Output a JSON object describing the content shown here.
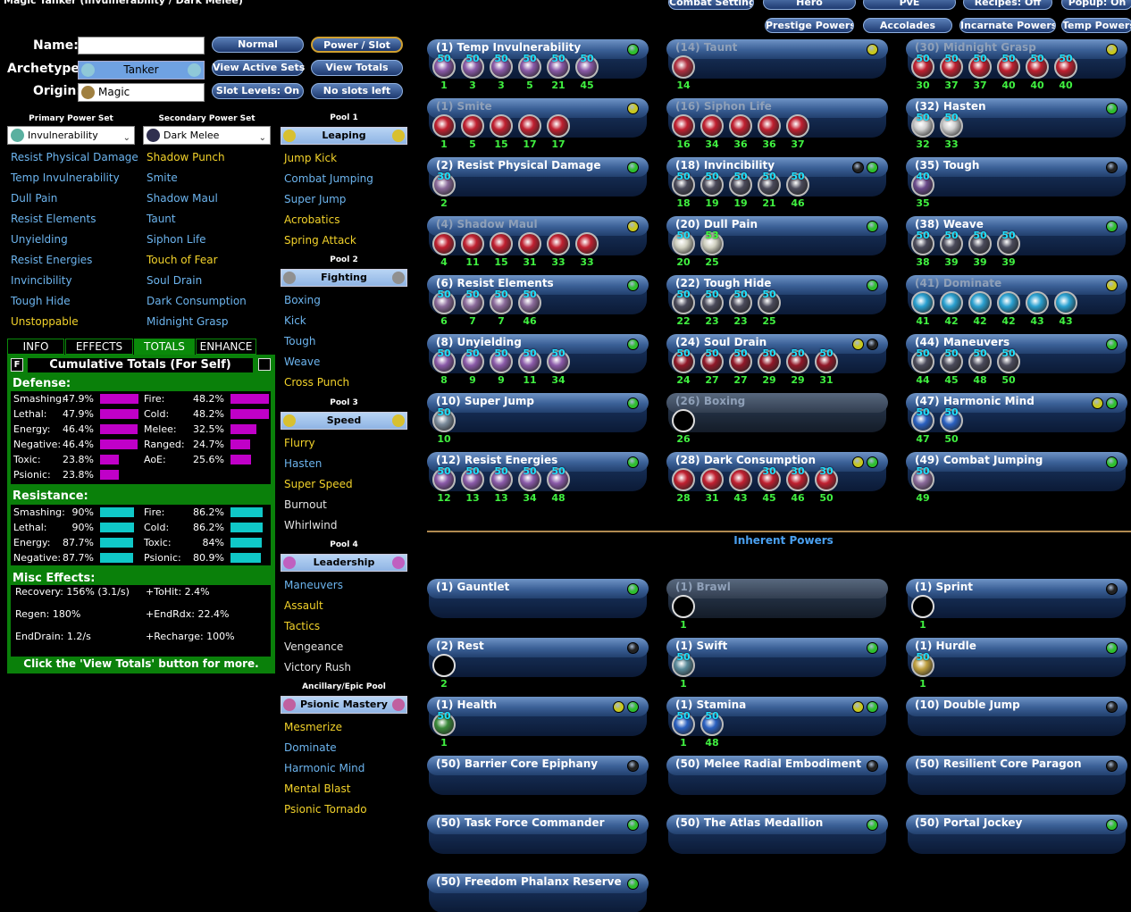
{
  "title": "Magic Tanker (Invulnerability / Dark Melee)",
  "top_buttons": [
    [
      "Combat Settings",
      "Hero",
      "PvE",
      "Recipes: Off",
      "Popup: On"
    ],
    [
      "Prestige Powers",
      "Accolades",
      "Incarnate Powers",
      "Temp Powers"
    ]
  ],
  "form": {
    "name_label": "Name:",
    "archetype_label": "Archetype:",
    "archetype": "Tanker",
    "origin_label": "Origin:",
    "origin": "Magic"
  },
  "buttons": [
    [
      "Normal",
      "Power / Slot"
    ],
    [
      "View Active Sets",
      "View Totals"
    ],
    [
      "Slot Levels: On",
      "No slots left"
    ]
  ],
  "state_colors": {
    "taken": "#6cb4ee",
    "available": "#f2d22a",
    "unavailable": "#e2e2e2"
  },
  "power_sets": [
    {
      "label": "Primary Power Set",
      "name": "Invulnerability",
      "powers": [
        [
          "Resist Physical Damage",
          "taken"
        ],
        [
          "Temp Invulnerability",
          "taken"
        ],
        [
          "Dull Pain",
          "taken"
        ],
        [
          "Resist Elements",
          "taken"
        ],
        [
          "Unyielding",
          "taken"
        ],
        [
          "Resist Energies",
          "taken"
        ],
        [
          "Invincibility",
          "taken"
        ],
        [
          "Tough Hide",
          "taken"
        ],
        [
          "Unstoppable",
          "available"
        ]
      ]
    },
    {
      "label": "Secondary Power Set",
      "name": "Dark Melee",
      "powers": [
        [
          "Shadow Punch",
          "available"
        ],
        [
          "Smite",
          "taken"
        ],
        [
          "Shadow Maul",
          "taken"
        ],
        [
          "Taunt",
          "taken"
        ],
        [
          "Siphon Life",
          "taken"
        ],
        [
          "Touch of Fear",
          "available"
        ],
        [
          "Soul Drain",
          "taken"
        ],
        [
          "Dark Consumption",
          "taken"
        ],
        [
          "Midnight Grasp",
          "taken"
        ]
      ]
    }
  ],
  "pools": [
    {
      "label": "Pool 1",
      "name": "Leaping",
      "powers": [
        [
          "Jump Kick",
          "available"
        ],
        [
          "Combat Jumping",
          "taken"
        ],
        [
          "Super Jump",
          "taken"
        ],
        [
          "Acrobatics",
          "available"
        ],
        [
          "Spring Attack",
          "available"
        ]
      ]
    },
    {
      "label": "Pool 2",
      "name": "Fighting",
      "powers": [
        [
          "Boxing",
          "taken"
        ],
        [
          "Kick",
          "taken"
        ],
        [
          "Tough",
          "taken"
        ],
        [
          "Weave",
          "taken"
        ],
        [
          "Cross Punch",
          "available"
        ]
      ]
    },
    {
      "label": "Pool 3",
      "name": "Speed",
      "powers": [
        [
          "Flurry",
          "available"
        ],
        [
          "Hasten",
          "taken"
        ],
        [
          "Super Speed",
          "available"
        ],
        [
          "Burnout",
          "unavailable"
        ],
        [
          "Whirlwind",
          "unavailable"
        ]
      ]
    },
    {
      "label": "Pool 4",
      "name": "Leadership",
      "powers": [
        [
          "Maneuvers",
          "taken"
        ],
        [
          "Assault",
          "available"
        ],
        [
          "Tactics",
          "available"
        ],
        [
          "Vengeance",
          "unavailable"
        ],
        [
          "Victory Rush",
          "unavailable"
        ]
      ]
    },
    {
      "label": "Ancillary/Epic Pool",
      "name": "Psionic Mastery",
      "powers": [
        [
          "Mesmerize",
          "available"
        ],
        [
          "Dominate",
          "taken"
        ],
        [
          "Harmonic Mind",
          "taken"
        ],
        [
          "Mental Blast",
          "available"
        ],
        [
          "Psionic Tornado",
          "available"
        ]
      ]
    }
  ],
  "tabs": [
    "INFO",
    "EFFECTS",
    "TOTALS",
    "ENHANCE"
  ],
  "active_tab": 2,
  "totals": {
    "flag": "F",
    "title": "Cumulative Totals (For Self)",
    "defense_label": "Defense:",
    "defense": [
      [
        {
          "name": "Smashing:",
          "value": 47.9,
          "label": "47.9%"
        },
        {
          "name": "Lethal:",
          "value": 47.9,
          "label": "47.9%"
        },
        {
          "name": "Energy:",
          "value": 46.4,
          "label": "46.4%"
        },
        {
          "name": "Negative:",
          "value": 46.4,
          "label": "46.4%"
        },
        {
          "name": "Toxic:",
          "value": 23.8,
          "label": "23.8%"
        },
        {
          "name": "Psionic:",
          "value": 23.8,
          "label": "23.8%"
        }
      ],
      [
        {
          "name": "Fire:",
          "value": 48.2,
          "label": "48.2%"
        },
        {
          "name": "Cold:",
          "value": 48.2,
          "label": "48.2%"
        },
        {
          "name": "Melee:",
          "value": 32.5,
          "label": "32.5%"
        },
        {
          "name": "Ranged:",
          "value": 24.7,
          "label": "24.7%"
        },
        {
          "name": "AoE:",
          "value": 25.6,
          "label": "25.6%"
        }
      ]
    ],
    "resistance_label": "Resistance:",
    "resistance": [
      [
        {
          "name": "Smashing:",
          "value": 90,
          "label": "90%"
        },
        {
          "name": "Lethal:",
          "value": 90,
          "label": "90%"
        },
        {
          "name": "Energy:",
          "value": 87.7,
          "label": "87.7%"
        },
        {
          "name": "Negative:",
          "value": 87.7,
          "label": "87.7%"
        }
      ],
      [
        {
          "name": "Fire:",
          "value": 86.2,
          "label": "86.2%"
        },
        {
          "name": "Cold:",
          "value": 86.2,
          "label": "86.2%"
        },
        {
          "name": "Toxic:",
          "value": 84,
          "label": "84%"
        },
        {
          "name": "Psionic:",
          "value": 80.9,
          "label": "80.9%"
        }
      ]
    ],
    "misc_label": "Misc Effects:",
    "misc": [
      [
        "Recovery: 156% (3.1/s)",
        "+ToHit: 2.4%"
      ],
      [
        "Regen: 180%",
        "+EndRdx: 22.4%"
      ],
      [
        "EndDrain: 1.2/s",
        "+Recharge: 100%"
      ]
    ],
    "footer": "Click the 'View Totals' button for more."
  },
  "power_grid": [
    [
      {
        "title": "(1) Temp Invulnerability",
        "icon": "#8a5aa8",
        "lights": [
          "#2fbf2f"
        ],
        "slots": [
          [
            50,
            1
          ],
          [
            50,
            3
          ],
          [
            50,
            3
          ],
          [
            50,
            5
          ],
          [
            50,
            21
          ],
          [
            50,
            45
          ]
        ]
      },
      {
        "title": "(1) Smite",
        "dim": true,
        "icon": "#c02030",
        "lights": [
          "#c8c820"
        ],
        "slots": [
          [
            null,
            1
          ],
          [
            null,
            5
          ],
          [
            null,
            15
          ],
          [
            null,
            17
          ],
          [
            null,
            17
          ]
        ]
      },
      {
        "title": "(2) Resist Physical Damage",
        "icon": "#8a6a9a",
        "lights": [
          "#2fbf2f"
        ],
        "slots": [
          [
            30,
            2
          ]
        ]
      },
      {
        "title": "(4) Shadow Maul",
        "dim": true,
        "icon": "#c02030",
        "lights": [
          "#c8c820"
        ],
        "slots": [
          [
            null,
            4
          ],
          [
            null,
            11
          ],
          [
            null,
            15
          ],
          [
            null,
            31
          ],
          [
            null,
            33
          ],
          [
            null,
            33
          ]
        ]
      },
      {
        "title": "(6) Resist Elements",
        "icon": "#8a6a9a",
        "lights": [
          "#2fbf2f"
        ],
        "slots": [
          [
            50,
            6
          ],
          [
            50,
            7
          ],
          [
            50,
            7
          ],
          [
            50,
            46
          ]
        ]
      },
      {
        "title": "(8) Unyielding",
        "icon": "#8a5aa8",
        "lights": [
          "#2fbf2f"
        ],
        "slots": [
          [
            50,
            8
          ],
          [
            50,
            9
          ],
          [
            50,
            9
          ],
          [
            50,
            11
          ],
          [
            50,
            34
          ]
        ]
      },
      {
        "title": "(10) Super Jump",
        "icon": "#7a8a9a",
        "lights": [
          "#2fbf2f"
        ],
        "slots": [
          [
            50,
            10
          ]
        ]
      },
      {
        "title": "(12) Resist Energies",
        "icon": "#8a5aa8",
        "lights": [
          "#2fbf2f"
        ],
        "slots": [
          [
            50,
            12
          ],
          [
            50,
            13
          ],
          [
            50,
            13
          ],
          [
            50,
            34
          ],
          [
            50,
            48
          ]
        ]
      }
    ],
    [
      {
        "title": "(14) Taunt",
        "dim": true,
        "icon": "#b03040",
        "lights": [
          "#c8c820"
        ],
        "slots": [
          [
            null,
            14
          ]
        ]
      },
      {
        "title": "(16) Siphon Life",
        "dim": true,
        "icon": "#c02030",
        "lights": [],
        "slots": [
          [
            null,
            16
          ],
          [
            null,
            34
          ],
          [
            null,
            36
          ],
          [
            null,
            36
          ],
          [
            null,
            37
          ]
        ]
      },
      {
        "title": "(18) Invincibility",
        "icon": "#4a4a5a",
        "lights": [
          "#222222",
          "#2fbf2f"
        ],
        "slots": [
          [
            50,
            18
          ],
          [
            50,
            19
          ],
          [
            50,
            19
          ],
          [
            50,
            21
          ],
          [
            50,
            46
          ]
        ]
      },
      {
        "title": "(20) Dull Pain",
        "icon": "#d0d0c0",
        "lights": [
          "#2fbf2f"
        ],
        "slots": [
          [
            50,
            20
          ],
          [
            53,
            25
          ]
        ]
      },
      {
        "title": "(22) Tough Hide",
        "icon": "#4a4a5a",
        "lights": [
          "#2fbf2f"
        ],
        "slots": [
          [
            50,
            22
          ],
          [
            50,
            23
          ],
          [
            50,
            23
          ],
          [
            50,
            25
          ]
        ]
      },
      {
        "title": "(24) Soul Drain",
        "icon": "#901828",
        "lights": [
          "#c8c820",
          "#222222"
        ],
        "slots": [
          [
            50,
            24
          ],
          [
            50,
            27
          ],
          [
            50,
            27
          ],
          [
            50,
            29
          ],
          [
            50,
            29
          ],
          [
            50,
            31
          ]
        ]
      },
      {
        "title": "(26) Boxing",
        "dim": true,
        "icon": null,
        "lights": [],
        "slots": [
          [
            null,
            26
          ]
        ]
      },
      {
        "title": "(28) Dark Consumption",
        "icon": "#c02030",
        "lights": [
          "#c8c820",
          "#2fbf2f"
        ],
        "slots": [
          [
            null,
            28
          ],
          [
            null,
            31
          ],
          [
            null,
            43
          ],
          [
            30,
            45
          ],
          [
            30,
            46
          ],
          [
            30,
            50
          ]
        ]
      }
    ],
    [
      {
        "title": "(30) Midnight Grasp",
        "dim": true,
        "icon": "#c02030",
        "lights": [
          "#c8c820"
        ],
        "slots": [
          [
            50,
            30
          ],
          [
            50,
            37
          ],
          [
            50,
            37
          ],
          [
            50,
            40
          ],
          [
            50,
            40
          ],
          [
            50,
            40
          ]
        ]
      },
      {
        "title": "(32) Hasten",
        "icon": "#d0d0d0",
        "lights": [
          "#2fbf2f"
        ],
        "slots": [
          [
            50,
            32
          ],
          [
            50,
            33
          ]
        ]
      },
      {
        "title": "(35) Tough",
        "icon": "#6a4a8a",
        "lights": [
          "#222222"
        ],
        "slots": [
          [
            40,
            35
          ]
        ]
      },
      {
        "title": "(38) Weave",
        "icon": "#4a4a5a",
        "lights": [
          "#2fbf2f"
        ],
        "slots": [
          [
            50,
            38
          ],
          [
            50,
            39
          ],
          [
            50,
            39
          ],
          [
            50,
            39
          ]
        ]
      },
      {
        "title": "(41) Dominate",
        "dim": true,
        "icon": "#2aa0d0",
        "lights": [
          "#c8c820"
        ],
        "slots": [
          [
            null,
            41
          ],
          [
            null,
            42
          ],
          [
            null,
            42
          ],
          [
            null,
            42
          ],
          [
            null,
            43
          ],
          [
            null,
            43
          ]
        ]
      },
      {
        "title": "(44) Maneuvers",
        "icon": "#4a4a5a",
        "lights": [
          "#2fbf2f"
        ],
        "slots": [
          [
            50,
            44
          ],
          [
            50,
            45
          ],
          [
            50,
            48
          ],
          [
            50,
            50
          ]
        ]
      },
      {
        "title": "(47) Harmonic Mind",
        "icon": "#2a60c0",
        "lights": [
          "#c8c820",
          "#2fbf2f"
        ],
        "slots": [
          [
            50,
            47
          ],
          [
            50,
            50
          ]
        ]
      },
      {
        "title": "(49) Combat Jumping",
        "icon": "#8a6a9a",
        "lights": [
          "#2fbf2f"
        ],
        "slots": [
          [
            50,
            49
          ]
        ]
      }
    ]
  ],
  "inherent_label": "Inherent Powers",
  "inherent": [
    {
      "title": "(1) Gauntlet",
      "icon": null,
      "lights": [
        "#2fbf2f"
      ],
      "slots": []
    },
    {
      "title": "(1) Brawl",
      "dim": true,
      "icon": null,
      "lights": [],
      "slots": [
        [
          null,
          1
        ]
      ]
    },
    {
      "title": "(1) Sprint",
      "icon": null,
      "lights": [
        "#222222"
      ],
      "slots": [
        [
          null,
          1
        ]
      ]
    },
    {
      "title": "(2) Rest",
      "icon": null,
      "lights": [
        "#222222"
      ],
      "slots": [
        [
          null,
          2
        ]
      ]
    },
    {
      "title": "(1) Swift",
      "icon": "#5a8a9a",
      "lights": [
        "#2fbf2f"
      ],
      "slots": [
        [
          50,
          1
        ]
      ]
    },
    {
      "title": "(1) Hurdle",
      "icon": "#c0a040",
      "lights": [
        "#2fbf2f"
      ],
      "slots": [
        [
          50,
          1
        ]
      ]
    },
    {
      "title": "(1) Health",
      "icon": "#3a8a3a",
      "lights": [
        "#c8c820",
        "#2fbf2f"
      ],
      "slots": [
        [
          50,
          1
        ]
      ]
    },
    {
      "title": "(1) Stamina",
      "icon": "#2a60c0",
      "lights": [
        "#c8c820",
        "#2fbf2f"
      ],
      "slots": [
        [
          50,
          1
        ],
        [
          50,
          48
        ]
      ]
    },
    {
      "title": "(10) Double Jump",
      "icon": null,
      "lights": [
        "#222222"
      ],
      "slots": []
    },
    {
      "title": "(50) Barrier Core Epiphany",
      "icon": null,
      "lights": [
        "#222222"
      ],
      "slots": []
    },
    {
      "title": "(50) Melee Radial Embodiment",
      "icon": null,
      "lights": [
        "#222222"
      ],
      "slots": []
    },
    {
      "title": "(50) Resilient Core Paragon",
      "icon": null,
      "lights": [
        "#222222"
      ],
      "slots": []
    },
    {
      "title": "(50) Task Force Commander",
      "icon": null,
      "lights": [
        "#2fbf2f"
      ],
      "slots": []
    },
    {
      "title": "(50) The Atlas Medallion",
      "icon": null,
      "lights": [
        "#2fbf2f"
      ],
      "slots": []
    },
    {
      "title": "(50) Portal Jockey",
      "icon": null,
      "lights": [
        "#2fbf2f"
      ],
      "slots": []
    },
    {
      "title": "(50) Freedom Phalanx Reserve",
      "icon": null,
      "lights": [
        "#2fbf2f"
      ],
      "slots": []
    }
  ]
}
